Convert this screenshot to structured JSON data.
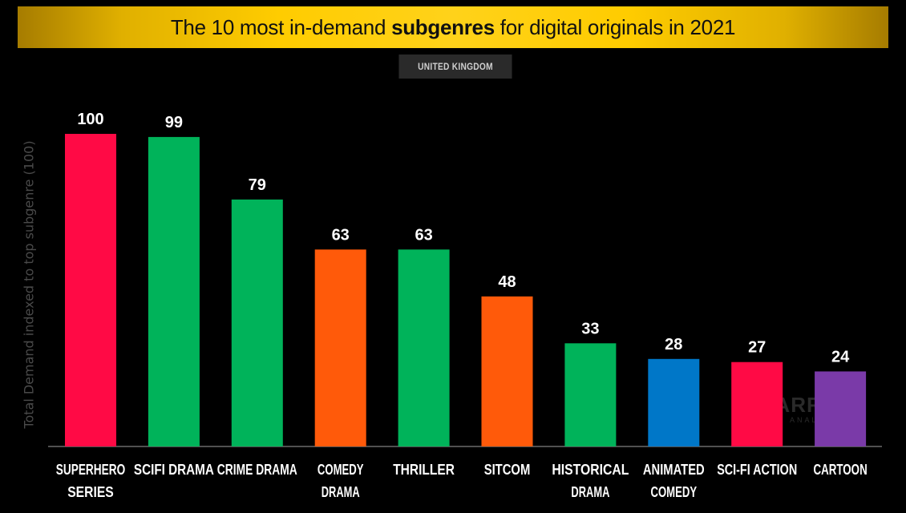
{
  "header": {
    "title_pre": "The 10 most in-demand ",
    "title_bold": "subgenres",
    "title_post": " for digital originals in 2021",
    "subtitle": "UNITED KINGDOM"
  },
  "watermark": {
    "brand": "PARROT",
    "sub": "ANALYTICS"
  },
  "chart_data": {
    "type": "bar",
    "title": "The 10 most in-demand subgenres for digital originals in 2021",
    "subtitle": "UNITED KINGDOM",
    "ylabel": "Total Demand indexed to top subgenre (100)",
    "xlabel": "",
    "ylim": [
      0,
      100
    ],
    "grid": false,
    "categories": [
      [
        "SUPERHERO",
        "SERIES"
      ],
      [
        "SCIFI DRAMA"
      ],
      [
        "CRIME DRAMA"
      ],
      [
        "COMEDY",
        "DRAMA"
      ],
      [
        "THRILLER"
      ],
      [
        "SITCOM"
      ],
      [
        "HISTORICAL",
        "DRAMA"
      ],
      [
        "ANIMATED",
        "COMEDY"
      ],
      [
        "SCI-FI ACTION"
      ],
      [
        "CARTOON"
      ]
    ],
    "values": [
      100,
      99,
      79,
      63,
      63,
      48,
      33,
      28,
      27,
      24
    ],
    "colors": [
      "#ff0a45",
      "#00b35a",
      "#00b35a",
      "#ff5a0a",
      "#00b35a",
      "#ff5a0a",
      "#00b35a",
      "#0077c8",
      "#ff0a45",
      "#7a3aa8"
    ]
  }
}
